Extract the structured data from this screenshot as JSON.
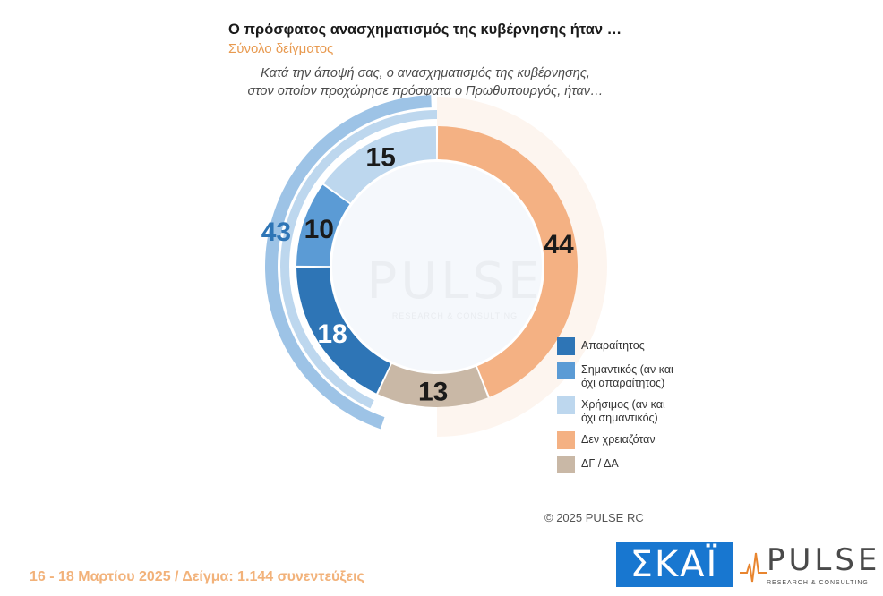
{
  "header": {
    "title": "Ο πρόσφατος ανασχηματισμός της κυβέρνησης ήταν …",
    "subtitle": "Σύνολο δείγματος",
    "question_line1": "Κατά την άποψή σας, ο ανασχηματισμός της κυβέρνησης,",
    "question_line2": "στον οποίον προχώρησε πρόσφατα ο Πρωθυπουργός, ήταν…"
  },
  "chart_data": {
    "type": "pie",
    "variant": "donut",
    "categories": [
      "Απαραίτητος",
      "Σημαντικός (αν και όχι απαραίτητος)",
      "Χρήσιμος (αν και όχι σημαντικός)",
      "Δεν χρειαζόταν",
      "ΔΓ / ΔΑ"
    ],
    "values": [
      18,
      10,
      15,
      44,
      13
    ],
    "colors": [
      "#2e75b6",
      "#5b9bd5",
      "#bdd7ee",
      "#f4b183",
      "#c9b8a6"
    ],
    "group_total": {
      "label": "43",
      "value": 43,
      "members": [
        0,
        1,
        2
      ],
      "color": "#2e75b6"
    },
    "legend_placement": "bottom-right"
  },
  "legend": [
    {
      "label": "Απαραίτητος",
      "color": "#2e75b6"
    },
    {
      "label": "Σημαντικός (αν και\nόχι απαραίτητος)",
      "color": "#5b9bd5"
    },
    {
      "label": "Χρήσιμος (αν και\nόχι σημαντικός)",
      "color": "#bdd7ee"
    },
    {
      "label": "Δεν χρειαζόταν",
      "color": "#f4b183"
    },
    {
      "label": "ΔΓ / ΔΑ",
      "color": "#c9b8a6"
    }
  ],
  "watermark": {
    "word": "PULSE",
    "tagline": "RESEARCH & CONSULTING"
  },
  "copyright": "©  2025  PULSE RC",
  "footer": "16 - 18 Μαρτίου 2025  /  Δείγμα:  1.144 συνεντεύξεις",
  "logos": {
    "skai": "ΣΚΑΪ",
    "pulse": "PULSE",
    "pulse_tagline": "RESEARCH & CONSULTING"
  }
}
